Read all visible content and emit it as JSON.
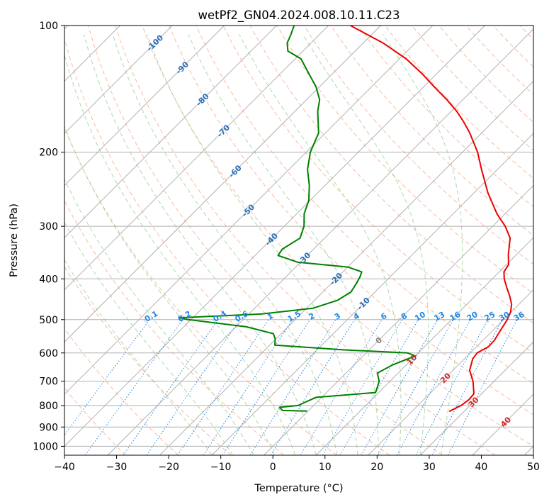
{
  "chart_data": {
    "type": "line",
    "chart_kind": "skew-t log-p",
    "title": "wetPf2_GN04.2024.008.10.11.C23",
    "xlabel": "Temperature (°C)",
    "ylabel": "Pressure (hPa)",
    "xlim": [
      -40,
      50
    ],
    "ylim": [
      1050,
      100
    ],
    "y_scale": "log",
    "grid": true,
    "x_ticks": [
      -40,
      -30,
      -20,
      -10,
      0,
      10,
      20,
      30,
      40,
      50
    ],
    "y_ticks": [
      100,
      200,
      300,
      400,
      500,
      600,
      700,
      800,
      900,
      1000
    ],
    "series": [
      {
        "role": "temperature",
        "color": "#ee0000",
        "points": [
          {
            "p": 825,
            "t": 27.2
          },
          {
            "p": 800,
            "t": 28.3
          },
          {
            "p": 775,
            "t": 28.7
          },
          {
            "p": 750,
            "t": 28.5
          },
          {
            "p": 700,
            "t": 25.9
          },
          {
            "p": 660,
            "t": 23.2
          },
          {
            "p": 620,
            "t": 21.6
          },
          {
            "p": 600,
            "t": 21.3
          },
          {
            "p": 580,
            "t": 22.3
          },
          {
            "p": 560,
            "t": 22.2
          },
          {
            "p": 540,
            "t": 21.7
          },
          {
            "p": 520,
            "t": 21.2
          },
          {
            "p": 500,
            "t": 20.7
          },
          {
            "p": 480,
            "t": 19.9
          },
          {
            "p": 460,
            "t": 18.6
          },
          {
            "p": 440,
            "t": 16.7
          },
          {
            "p": 420,
            "t": 14.5
          },
          {
            "p": 400,
            "t": 12.3
          },
          {
            "p": 385,
            "t": 10.9
          },
          {
            "p": 370,
            "t": 10.4
          },
          {
            "p": 350,
            "t": 8.4
          },
          {
            "p": 320,
            "t": 5.6
          },
          {
            "p": 300,
            "t": 2.4
          },
          {
            "p": 280,
            "t": -1.6
          },
          {
            "p": 250,
            "t": -7.3
          },
          {
            "p": 220,
            "t": -13.0
          },
          {
            "p": 200,
            "t": -17.1
          },
          {
            "p": 180,
            "t": -22.3
          },
          {
            "p": 170,
            "t": -25.4
          },
          {
            "p": 160,
            "t": -28.9
          },
          {
            "p": 150,
            "t": -33.1
          },
          {
            "p": 140,
            "t": -37.9
          },
          {
            "p": 130,
            "t": -42.9
          },
          {
            "p": 120,
            "t": -48.7
          },
          {
            "p": 110,
            "t": -56.2
          },
          {
            "p": 100,
            "t": -65.8
          }
        ]
      },
      {
        "role": "dewpoint",
        "color": "#008000",
        "points": [
          {
            "p": 825,
            "t": -0.3
          },
          {
            "p": 822,
            "t": -5.0
          },
          {
            "p": 808,
            "t": -6.2
          },
          {
            "p": 800,
            "t": -3.0
          },
          {
            "p": 785,
            "t": -2.2
          },
          {
            "p": 765,
            "t": -1.1
          },
          {
            "p": 745,
            "t": 9.4
          },
          {
            "p": 720,
            "t": 8.6
          },
          {
            "p": 700,
            "t": 7.9
          },
          {
            "p": 670,
            "t": 6.0
          },
          {
            "p": 640,
            "t": 7.4
          },
          {
            "p": 610,
            "t": 10.0
          },
          {
            "p": 600,
            "t": 8.0
          },
          {
            "p": 590,
            "t": -5.0
          },
          {
            "p": 575,
            "t": -19.0
          },
          {
            "p": 555,
            "t": -20.2
          },
          {
            "p": 540,
            "t": -21.5
          },
          {
            "p": 520,
            "t": -28.0
          },
          {
            "p": 500,
            "t": -40.5
          },
          {
            "p": 495,
            "t": -42.6
          },
          {
            "p": 485,
            "t": -27.6
          },
          {
            "p": 470,
            "t": -18.8
          },
          {
            "p": 450,
            "t": -15.6
          },
          {
            "p": 430,
            "t": -14.6
          },
          {
            "p": 410,
            "t": -15.2
          },
          {
            "p": 395,
            "t": -15.8
          },
          {
            "p": 385,
            "t": -16.4
          },
          {
            "p": 375,
            "t": -20.0
          },
          {
            "p": 365,
            "t": -30.6
          },
          {
            "p": 352,
            "t": -35.6
          },
          {
            "p": 340,
            "t": -36.0
          },
          {
            "p": 320,
            "t": -34.7
          },
          {
            "p": 300,
            "t": -36.2
          },
          {
            "p": 280,
            "t": -38.6
          },
          {
            "p": 260,
            "t": -40.3
          },
          {
            "p": 240,
            "t": -43.0
          },
          {
            "p": 220,
            "t": -46.4
          },
          {
            "p": 200,
            "t": -49.2
          },
          {
            "p": 180,
            "t": -51.3
          },
          {
            "p": 160,
            "t": -55.6
          },
          {
            "p": 150,
            "t": -57.5
          },
          {
            "p": 140,
            "t": -60.6
          },
          {
            "p": 130,
            "t": -64.6
          },
          {
            "p": 120,
            "t": -68.9
          },
          {
            "p": 115,
            "t": -72.9
          },
          {
            "p": 110,
            "t": -74.6
          },
          {
            "p": 105,
            "t": -75.5
          },
          {
            "p": 100,
            "t": -76.6
          }
        ]
      }
    ],
    "background_lines": {
      "skewed_isotherm_color": "#aaaaaa",
      "dry_adiabat_color": "#f4a582",
      "moist_adiabat_color": "#9fd39f",
      "mixing_ratio_color": "#3a8fe0"
    },
    "annotations": {
      "isotherm_labels": [
        {
          "label": "-100",
          "value": -100,
          "color": "#2a6ebb"
        },
        {
          "label": "-90",
          "value": -90,
          "color": "#2a6ebb"
        },
        {
          "label": "-80",
          "value": -80,
          "color": "#2a6ebb"
        },
        {
          "label": "-70",
          "value": -70,
          "color": "#2a6ebb"
        },
        {
          "label": "-60",
          "value": -60,
          "color": "#2a6ebb"
        },
        {
          "label": "-50",
          "value": -50,
          "color": "#2a6ebb"
        },
        {
          "label": "-40",
          "value": -40,
          "color": "#2a6ebb"
        },
        {
          "label": "-30",
          "value": -30,
          "color": "#2a6ebb"
        },
        {
          "label": "-20",
          "value": -20,
          "color": "#2a6ebb"
        },
        {
          "label": "-10",
          "value": -10,
          "color": "#2a6ebb"
        },
        {
          "label": "0",
          "value": 0,
          "color": "#808080"
        },
        {
          "label": "10",
          "value": 10,
          "color": "#d62728"
        },
        {
          "label": "20",
          "value": 20,
          "color": "#d62728"
        },
        {
          "label": "30",
          "value": 30,
          "color": "#d62728"
        },
        {
          "label": "40",
          "value": 40,
          "color": "#d62728"
        }
      ],
      "mixing_ratio_labels": [
        "0.1",
        "0.2",
        "0.4",
        "0.6",
        "1",
        "1.5",
        "2",
        "3",
        "4",
        "6",
        "8",
        "10",
        "13",
        "16",
        "20",
        "25",
        "30",
        "36"
      ],
      "mixing_ratio_label_color": "#1e88e5"
    }
  }
}
